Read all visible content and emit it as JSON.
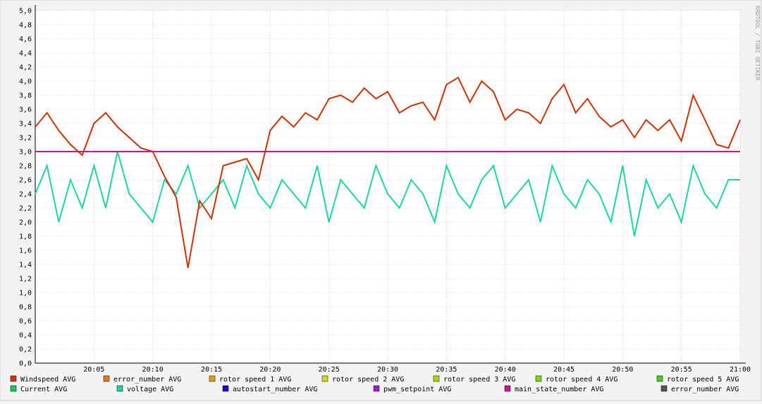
{
  "chart_data": {
    "type": "line",
    "watermark": "RRDTOOL / TOBI OETIKER",
    "x": [
      "20:00",
      "20:01",
      "20:02",
      "20:03",
      "20:04",
      "20:05",
      "20:06",
      "20:07",
      "20:08",
      "20:09",
      "20:10",
      "20:11",
      "20:12",
      "20:13",
      "20:14",
      "20:15",
      "20:16",
      "20:17",
      "20:18",
      "20:19",
      "20:20",
      "20:21",
      "20:22",
      "20:23",
      "20:24",
      "20:25",
      "20:26",
      "20:27",
      "20:28",
      "20:29",
      "20:30",
      "20:31",
      "20:32",
      "20:33",
      "20:34",
      "20:35",
      "20:36",
      "20:37",
      "20:38",
      "20:39",
      "20:40",
      "20:41",
      "20:42",
      "20:43",
      "20:44",
      "20:45",
      "20:46",
      "20:47",
      "20:48",
      "20:49",
      "20:50",
      "20:51",
      "20:52",
      "20:53",
      "20:54",
      "20:55",
      "20:56",
      "20:57",
      "20:58",
      "20:59",
      "21:00"
    ],
    "xlim": [
      "20:00",
      "21:00"
    ],
    "xticks": [
      "20:05",
      "20:10",
      "20:15",
      "20:20",
      "20:25",
      "20:30",
      "20:35",
      "20:40",
      "20:45",
      "20:50",
      "20:55",
      "21:00"
    ],
    "ylim": [
      0,
      5
    ],
    "yticks": [
      {
        "value": 0,
        "label": "0,0"
      },
      {
        "value": 0.2,
        "label": "0,2"
      },
      {
        "value": 0.4,
        "label": "0,4"
      },
      {
        "value": 0.6,
        "label": "0,6"
      },
      {
        "value": 0.8,
        "label": "0,8"
      },
      {
        "value": 1,
        "label": "1,0"
      },
      {
        "value": 1.2,
        "label": "1,2"
      },
      {
        "value": 1.4,
        "label": "1,4"
      },
      {
        "value": 1.6,
        "label": "1,6"
      },
      {
        "value": 1.8,
        "label": "1,8"
      },
      {
        "value": 2,
        "label": "2,0"
      },
      {
        "value": 2.2,
        "label": "2,2"
      },
      {
        "value": 2.4,
        "label": "2,4"
      },
      {
        "value": 2.6,
        "label": "2,6"
      },
      {
        "value": 2.8,
        "label": "2,8"
      },
      {
        "value": 3,
        "label": "3,0"
      },
      {
        "value": 3.2,
        "label": "3,2"
      },
      {
        "value": 3.4,
        "label": "3,4"
      },
      {
        "value": 3.6,
        "label": "3,6"
      },
      {
        "value": 3.8,
        "label": "3,8"
      },
      {
        "value": 4,
        "label": "4,0"
      },
      {
        "value": 4.2,
        "label": "4,2"
      },
      {
        "value": 4.4,
        "label": "4,4"
      },
      {
        "value": 4.6,
        "label": "4,6"
      },
      {
        "value": 4.8,
        "label": "4,8"
      },
      {
        "value": 5,
        "label": "5,0"
      }
    ],
    "grid": true,
    "series": [
      {
        "name": "Windspeed AVG",
        "color": "#cc3300",
        "values": [
          3.35,
          3.55,
          3.3,
          3.1,
          2.95,
          3.4,
          3.55,
          3.35,
          3.2,
          3.05,
          3.0,
          2.65,
          2.35,
          1.35,
          2.3,
          2.05,
          2.8,
          2.85,
          2.9,
          2.6,
          3.3,
          3.5,
          3.35,
          3.55,
          3.45,
          3.75,
          3.8,
          3.7,
          3.9,
          3.75,
          3.85,
          3.55,
          3.65,
          3.7,
          3.45,
          3.95,
          4.05,
          3.7,
          4.0,
          3.85,
          3.45,
          3.6,
          3.55,
          3.4,
          3.75,
          3.95,
          3.55,
          3.75,
          3.5,
          3.35,
          3.45,
          3.2,
          3.45,
          3.3,
          3.45,
          3.15,
          3.8,
          3.45,
          3.1,
          3.05,
          3.45
        ]
      },
      {
        "name": "error_number AVG",
        "color": "#e87722",
        "values": null
      },
      {
        "name": "rotor speed 1 AVG",
        "color": "#d8a400",
        "values": null
      },
      {
        "name": "rotor speed 2 AVG",
        "color": "#d8d800",
        "values": null
      },
      {
        "name": "rotor speed 3 AVG",
        "color": "#a8d800",
        "values": null
      },
      {
        "name": "rotor speed 4 AVG",
        "color": "#78d800",
        "values": null
      },
      {
        "name": "rotor speed 5 AVG",
        "color": "#44cc22",
        "values": null
      },
      {
        "name": "Current AVG",
        "color": "#11cc55",
        "values": null
      },
      {
        "name": "voltage AVG",
        "color": "#1ad6a5",
        "values": [
          2.4,
          2.8,
          2.0,
          2.6,
          2.2,
          2.8,
          2.2,
          3.0,
          2.4,
          2.2,
          2.0,
          2.6,
          2.4,
          2.8,
          2.2,
          2.4,
          2.6,
          2.2,
          2.8,
          2.4,
          2.2,
          2.6,
          2.4,
          2.2,
          2.8,
          2.0,
          2.6,
          2.4,
          2.2,
          2.8,
          2.4,
          2.2,
          2.6,
          2.4,
          2.0,
          2.8,
          2.4,
          2.2,
          2.6,
          2.8,
          2.2,
          2.4,
          2.6,
          2.0,
          2.8,
          2.4,
          2.2,
          2.6,
          2.4,
          2.0,
          2.8,
          1.8,
          2.6,
          2.2,
          2.4,
          2.0,
          2.8,
          2.4,
          2.2,
          2.6,
          2.6
        ]
      },
      {
        "name": "autostart_number AVG",
        "color": "#2200cc",
        "values": null
      },
      {
        "name": "pwm_setpoint AVG",
        "color": "#9922cc",
        "values": null
      },
      {
        "name": "main_state_number AVG",
        "color": "#cc1199",
        "values": [
          3,
          3,
          3,
          3,
          3,
          3,
          3,
          3,
          3,
          3,
          3,
          3,
          3,
          3,
          3,
          3,
          3,
          3,
          3,
          3,
          3,
          3,
          3,
          3,
          3,
          3,
          3,
          3,
          3,
          3,
          3,
          3,
          3,
          3,
          3,
          3,
          3,
          3,
          3,
          3,
          3,
          3,
          3,
          3,
          3,
          3,
          3,
          3,
          3,
          3,
          3,
          3,
          3,
          3,
          3,
          3,
          3,
          3,
          3,
          3,
          3
        ]
      },
      {
        "name": "error_number AVG",
        "color": "#555555",
        "values": null
      }
    ]
  }
}
